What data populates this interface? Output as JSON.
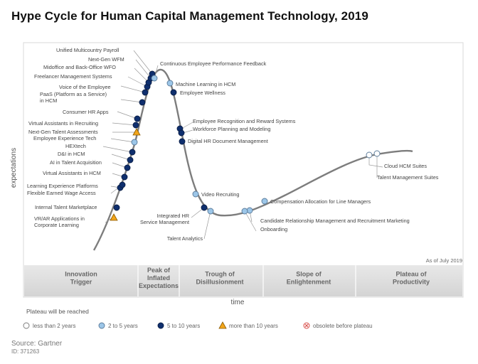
{
  "title": "Hype Cycle for Human Capital Management Technology, 2019",
  "axes": {
    "y_label": "expectations",
    "x_label": "time"
  },
  "as_of": "As of July 2019",
  "phases": [
    {
      "lines": [
        "Innovation",
        "Trigger"
      ]
    },
    {
      "lines": [
        "Peak of",
        "Inflated",
        "Expectations"
      ]
    },
    {
      "lines": [
        "Trough of",
        "Disillusionment"
      ]
    },
    {
      "lines": [
        "Slope of",
        "Enlightenment"
      ]
    },
    {
      "lines": [
        "Plateau of",
        "Productivity"
      ]
    }
  ],
  "legend": {
    "heading": "Plateau will be reached",
    "items": [
      {
        "label": "less than 2 years",
        "marker": "open-circle",
        "color": "#ffffff"
      },
      {
        "label": "2 to 5 years",
        "marker": "circle",
        "color": "#9cc6e8"
      },
      {
        "label": "5 to 10 years",
        "marker": "circle",
        "color": "#0f2f6e"
      },
      {
        "label": "more than 10 years",
        "marker": "triangle",
        "color": "#f2a51a"
      },
      {
        "label": "obsolete before plateau",
        "marker": "x-circle",
        "color": "#d9534f"
      }
    ]
  },
  "technologies": [
    {
      "name": "VR/AR Applications in Corporate Learning",
      "label_lines": [
        "VR/AR Applications in",
        "Corporate Learning"
      ],
      "marker": "triangle"
    },
    {
      "name": "Internal Talent Marketplace",
      "label_lines": [
        "Internal Talent Marketplace"
      ],
      "marker": "dark"
    },
    {
      "name": "Learning Experience Platforms",
      "label_lines": [
        "Learning Experience Platforms"
      ],
      "marker": "dark"
    },
    {
      "name": "Flexible Earned Wage Access",
      "label_lines": [
        "Flexible Earned Wage Access"
      ],
      "marker": "dark"
    },
    {
      "name": "Virtual Assistants in HCM",
      "label_lines": [
        "Virtual Assistants in HCM"
      ],
      "marker": "dark"
    },
    {
      "name": "AI in Talent Acquisition",
      "label_lines": [
        "AI in Talent Acquisition"
      ],
      "marker": "dark"
    },
    {
      "name": "D&I in HCM",
      "label_lines": [
        "D&I in HCM"
      ],
      "marker": "dark"
    },
    {
      "name": "HEXtech",
      "label_lines": [
        "HEXtech"
      ],
      "marker": "dark"
    },
    {
      "name": "Employee Experience Tech",
      "label_lines": [
        "Employee Experience Tech"
      ],
      "marker": "light"
    },
    {
      "name": "Next-Gen Talent Assessments",
      "label_lines": [
        "Next-Gen Talent Assessments"
      ],
      "marker": "triangle"
    },
    {
      "name": "Virtual Assistants in Recruiting",
      "label_lines": [
        "Virtual Assistants in Recruiting"
      ],
      "marker": "dark"
    },
    {
      "name": "Consumer HR Apps",
      "label_lines": [
        "Consumer HR Apps"
      ],
      "marker": "dark"
    },
    {
      "name": "PaaS (Platform as a Service) in HCM",
      "label_lines": [
        "PaaS (Platform as a Service)",
        "in HCM"
      ],
      "marker": "dark"
    },
    {
      "name": "Voice of the Employee",
      "label_lines": [
        "Voice of the Employee"
      ],
      "marker": "dark"
    },
    {
      "name": "Freelancer Management Systems",
      "label_lines": [
        "Freelancer Management Systems"
      ],
      "marker": "dark"
    },
    {
      "name": "Midoffice and Back-Office WFO",
      "label_lines": [
        "Midoffice and Back-Office WFO"
      ],
      "marker": "dark"
    },
    {
      "name": "Next-Gen WFM",
      "label_lines": [
        "Next-Gen WFM"
      ],
      "marker": "dark"
    },
    {
      "name": "Unified Multicountry Payroll",
      "label_lines": [
        "Unified Multicountry Payroll"
      ],
      "marker": "dark"
    },
    {
      "name": "Continuous Employee Performance Feedback",
      "label_lines": [
        "Continuous Employee Performance Feedback"
      ],
      "marker": "light"
    },
    {
      "name": "Machine Learning in HCM",
      "label_lines": [
        "Machine Learning in HCM"
      ],
      "marker": "light"
    },
    {
      "name": "Employee Wellness",
      "label_lines": [
        "Employee Wellness"
      ],
      "marker": "dark"
    },
    {
      "name": "Employee Recognition and Reward Systems",
      "label_lines": [
        "Employee Recognition and Reward Systems"
      ],
      "marker": "dark"
    },
    {
      "name": "Workforce Planning and Modeling",
      "label_lines": [
        "Workforce Planning and Modeling"
      ],
      "marker": "dark"
    },
    {
      "name": "Digital HR Document Management",
      "label_lines": [
        "Digital HR Document Management"
      ],
      "marker": "dark"
    },
    {
      "name": "Video Recruiting",
      "label_lines": [
        "Video Recruiting"
      ],
      "marker": "light"
    },
    {
      "name": "Integrated HR Service Management",
      "label_lines": [
        "Integrated HR",
        "Service Management"
      ],
      "marker": "dark"
    },
    {
      "name": "Talent Analytics",
      "label_lines": [
        "Talent Analytics"
      ],
      "marker": "light"
    },
    {
      "name": "Compensation Allocation for Line Managers",
      "label_lines": [
        "Compensation Allocation for Line Managers"
      ],
      "marker": "light"
    },
    {
      "name": "Candidate Relationship Management and Recruitment Marketing",
      "label_lines": [
        "Candidate Relationship Management and Recruitment Marketing"
      ],
      "marker": "light"
    },
    {
      "name": "Onboarding",
      "label_lines": [
        "Onboarding"
      ],
      "marker": "light"
    },
    {
      "name": "Cloud HCM Suites",
      "label_lines": [
        "Cloud HCM Suites"
      ],
      "marker": "open"
    },
    {
      "name": "Talent Management Suites",
      "label_lines": [
        "Talent Management Suites"
      ],
      "marker": "open"
    }
  ],
  "footer": {
    "source": "Source: Gartner",
    "id": "ID: 371263"
  }
}
